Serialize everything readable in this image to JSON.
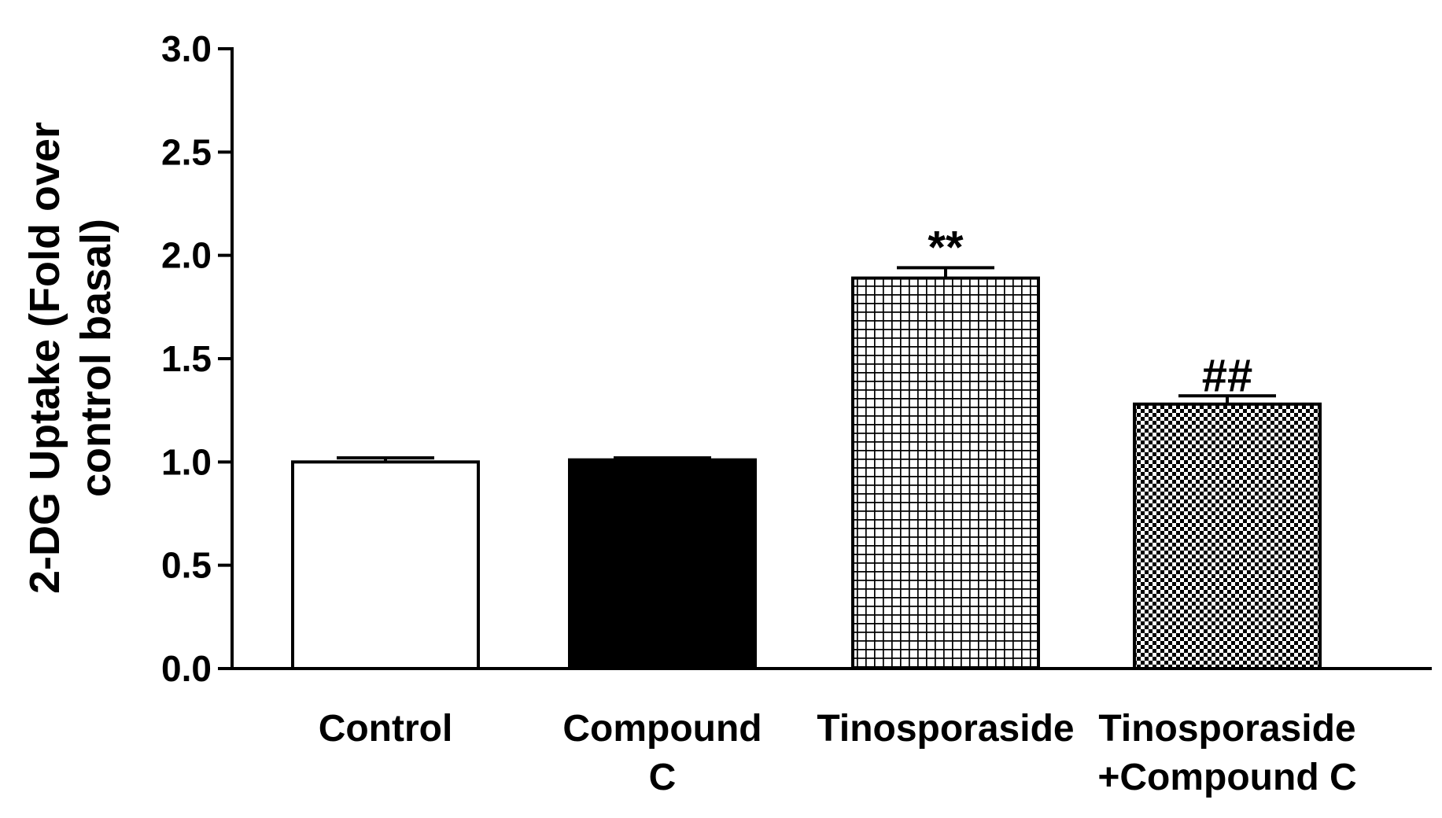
{
  "chart_data": {
    "type": "bar",
    "title": "",
    "xlabel": "",
    "ylabel": "2-DG Uptake (Fold over control basal)",
    "ylabel_lines": [
      "2-DG Uptake (Fold over",
      "control basal)"
    ],
    "ylim": [
      0,
      3.0
    ],
    "yticks": [
      0.0,
      0.5,
      1.0,
      1.5,
      2.0,
      2.5,
      3.0
    ],
    "ytick_labels": [
      "0.0",
      "0.5",
      "1.0",
      "1.5",
      "2.0",
      "2.5",
      "3.0"
    ],
    "grid": false,
    "categories": [
      "Control",
      "Compound C",
      "Tinosporaside",
      "Tinosporaside +Compound C"
    ],
    "category_lines": [
      [
        "Control"
      ],
      [
        "Compound",
        "C"
      ],
      [
        "Tinosporaside"
      ],
      [
        "Tinosporaside",
        "+Compound C"
      ]
    ],
    "values": [
      1.0,
      1.01,
      1.89,
      1.28
    ],
    "errors": [
      0.02,
      0.01,
      0.05,
      0.04
    ],
    "fills": [
      "white",
      "black",
      "grid",
      "checker"
    ],
    "annotations": [
      "",
      "",
      "**",
      "##"
    ]
  }
}
